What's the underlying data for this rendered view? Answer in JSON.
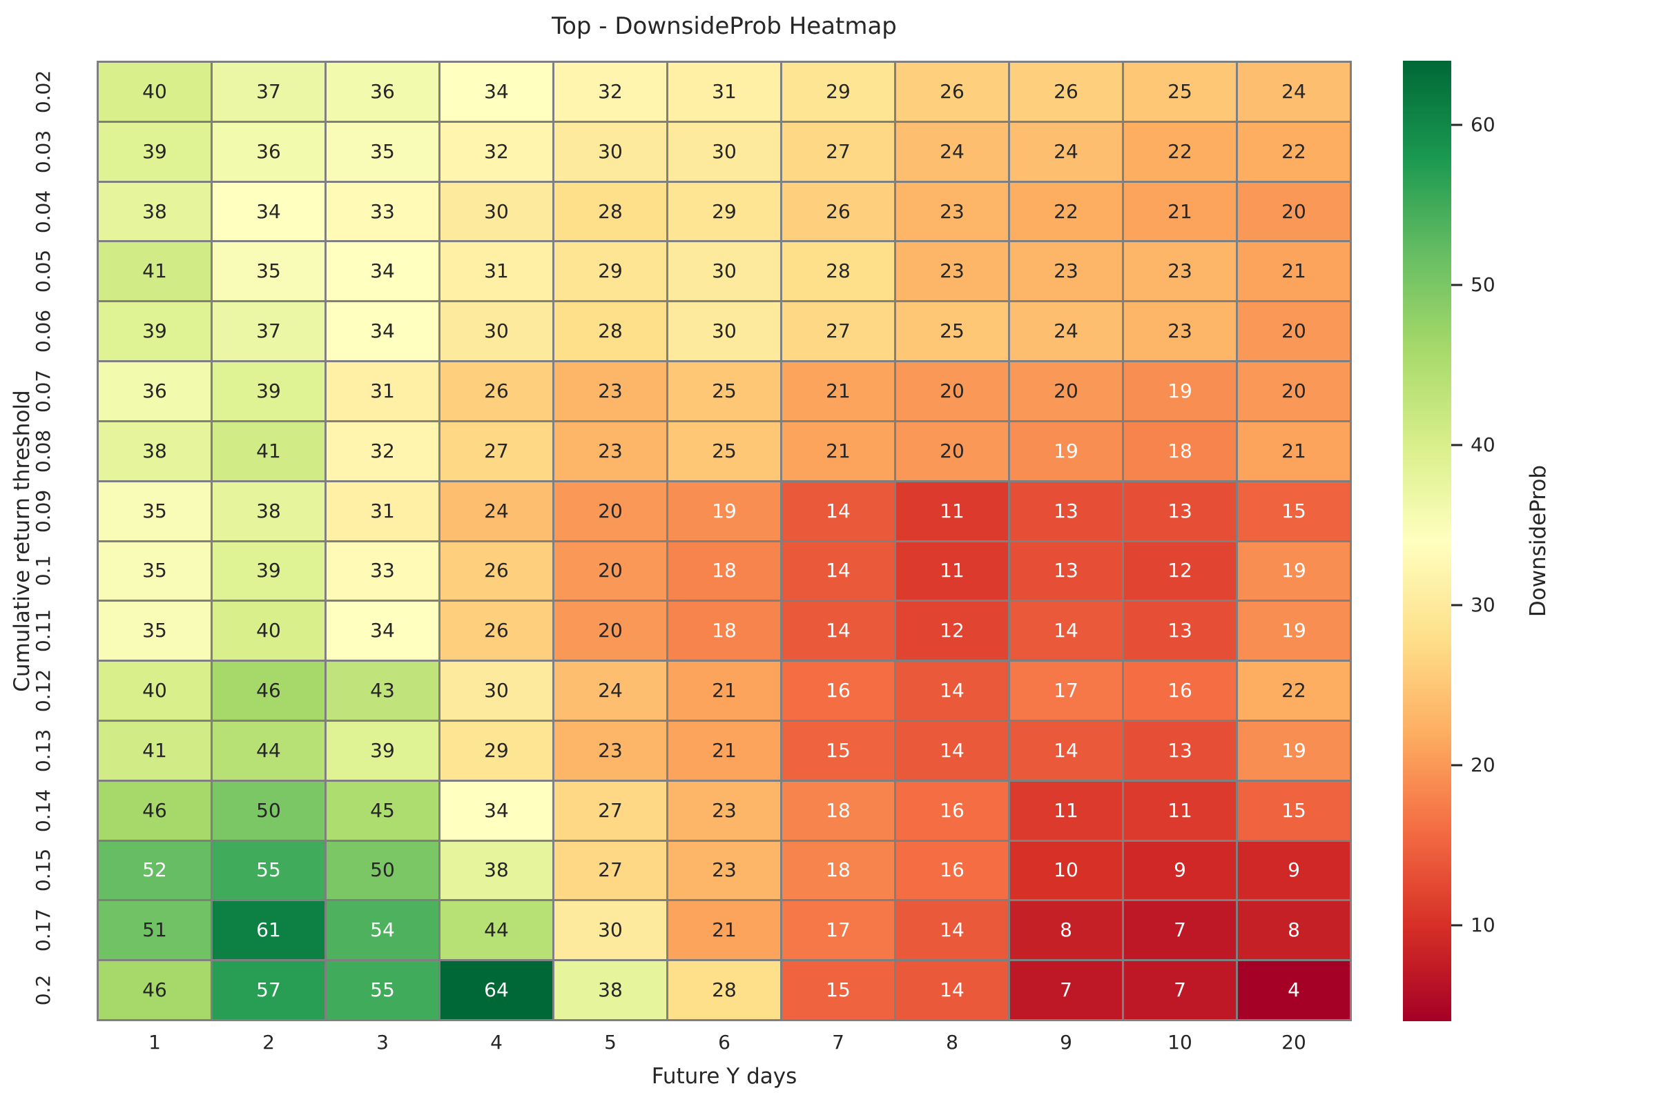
{
  "figure": {
    "background_color": "#ffffff",
    "gridline_color": "#7f7f7f",
    "text_color": "#262626",
    "annotation_light_text_color": "#ffffff"
  },
  "chart_data": {
    "type": "heatmap",
    "title": "Top - DownsideProb Heatmap",
    "xlabel": "Future Y days",
    "ylabel": "Cumulative return threshold",
    "x_labels": [
      "1",
      "2",
      "3",
      "4",
      "5",
      "6",
      "7",
      "8",
      "9",
      "10",
      "20"
    ],
    "y_labels": [
      "0.02",
      "0.03",
      "0.04",
      "0.05",
      "0.06",
      "0.07",
      "0.08",
      "0.09",
      "0.1",
      "0.11",
      "0.12",
      "0.13",
      "0.14",
      "0.15",
      "0.17",
      "0.2"
    ],
    "values": [
      [
        40,
        37,
        36,
        34,
        32,
        31,
        29,
        26,
        26,
        25,
        24
      ],
      [
        39,
        36,
        35,
        32,
        30,
        30,
        27,
        24,
        24,
        22,
        22
      ],
      [
        38,
        34,
        33,
        30,
        28,
        29,
        26,
        23,
        22,
        21,
        20
      ],
      [
        41,
        35,
        34,
        31,
        29,
        30,
        28,
        23,
        23,
        23,
        21
      ],
      [
        39,
        37,
        34,
        30,
        28,
        30,
        27,
        25,
        24,
        23,
        20
      ],
      [
        36,
        39,
        31,
        26,
        23,
        25,
        21,
        20,
        20,
        19,
        20
      ],
      [
        38,
        41,
        32,
        27,
        23,
        25,
        21,
        20,
        19,
        18,
        21
      ],
      [
        35,
        38,
        31,
        24,
        20,
        19,
        14,
        11,
        13,
        13,
        15
      ],
      [
        35,
        39,
        33,
        26,
        20,
        18,
        14,
        11,
        13,
        12,
        19
      ],
      [
        35,
        40,
        34,
        26,
        20,
        18,
        14,
        12,
        14,
        13,
        19
      ],
      [
        40,
        46,
        43,
        30,
        24,
        21,
        16,
        14,
        17,
        16,
        22
      ],
      [
        41,
        44,
        39,
        29,
        23,
        21,
        15,
        14,
        14,
        13,
        19
      ],
      [
        46,
        50,
        45,
        34,
        27,
        23,
        18,
        16,
        11,
        11,
        15
      ],
      [
        52,
        55,
        50,
        38,
        27,
        23,
        18,
        16,
        10,
        9,
        9
      ],
      [
        51,
        61,
        54,
        44,
        30,
        21,
        17,
        14,
        8,
        7,
        8
      ],
      [
        46,
        57,
        55,
        64,
        38,
        28,
        15,
        14,
        7,
        7,
        4
      ]
    ],
    "annotated": true,
    "colormap": "RdYlGn",
    "colormap_anchors": [
      "#a50026",
      "#d73027",
      "#f46d43",
      "#fdae61",
      "#fee08b",
      "#ffffbf",
      "#d9ef8b",
      "#a6d96a",
      "#66bd63",
      "#1a9850",
      "#006837"
    ],
    "vmin": 4,
    "vmax": 64,
    "grid_on": false,
    "colorbar": {
      "label": "DownsideProb",
      "ticks": [
        10,
        20,
        30,
        40,
        50,
        60
      ],
      "position": "right"
    }
  }
}
